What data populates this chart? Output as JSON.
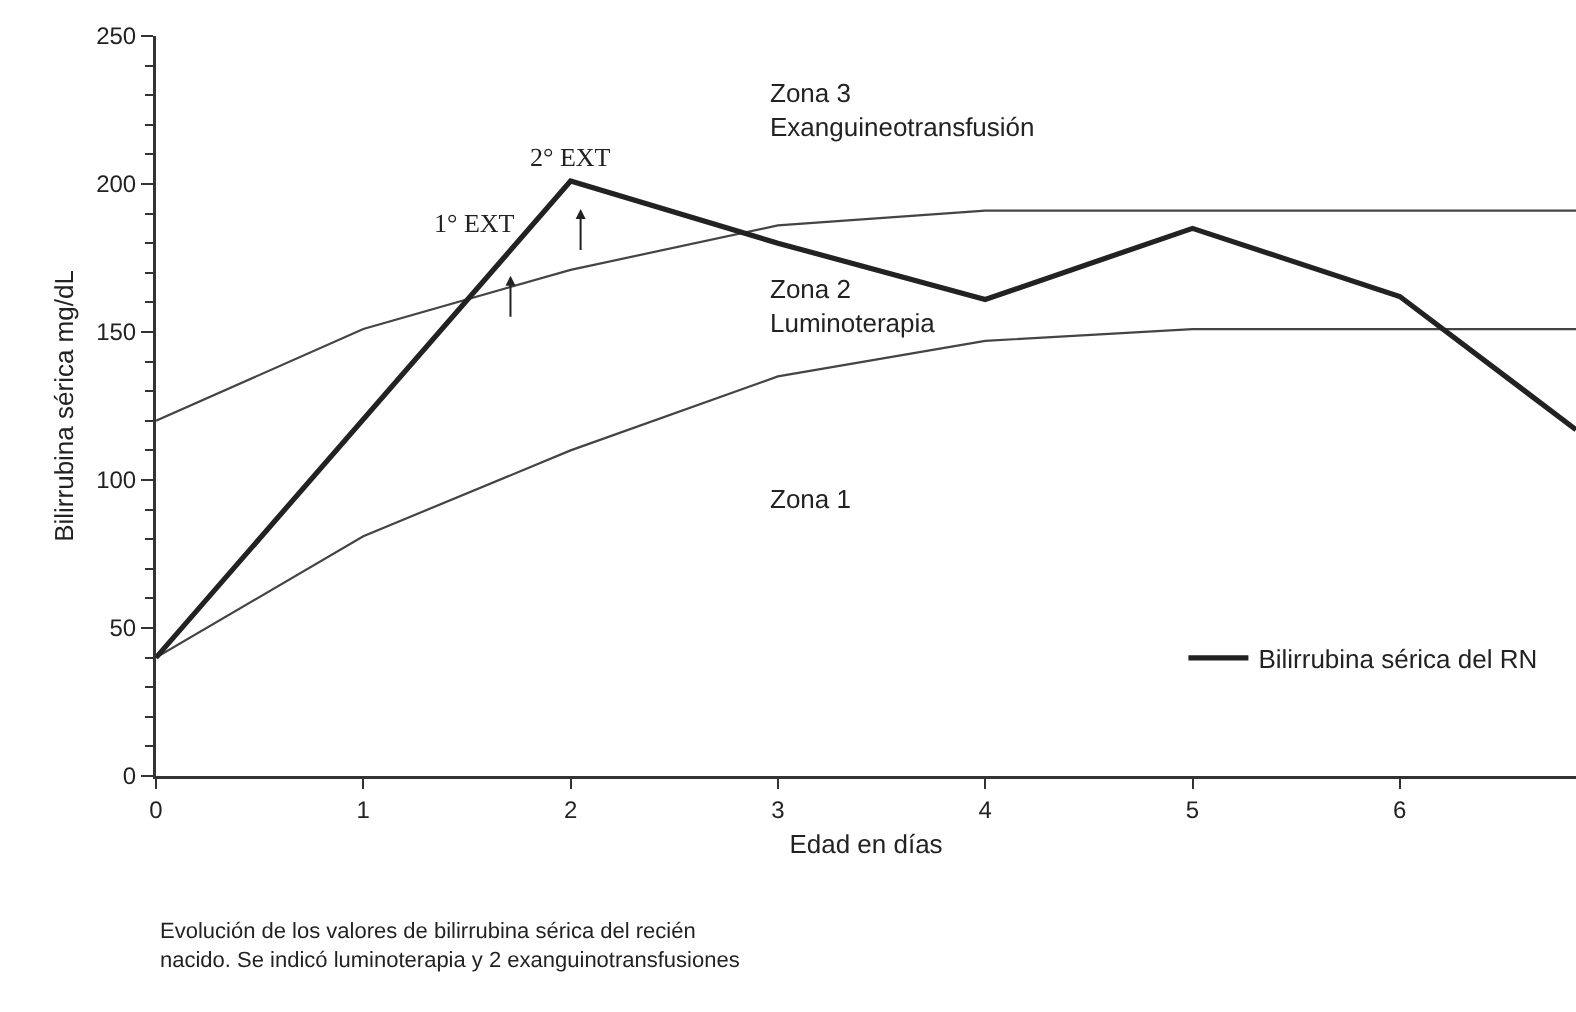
{
  "chart_data": {
    "type": "line",
    "xlabel": "Edad en días",
    "ylabel": "Bilirrubina sérica mg/dL",
    "xlim": [
      0,
      6.85
    ],
    "xticks": [
      0,
      1,
      2,
      3,
      4,
      5,
      6
    ],
    "ylim": [
      0,
      250
    ],
    "yticks": [
      0,
      50,
      100,
      150,
      200,
      250
    ],
    "grid": false,
    "legend": "bottom right",
    "marker": "none",
    "line_style": "solid",
    "series": [
      {
        "color": "#444444",
        "x": [
          0,
          1,
          2,
          3,
          4,
          5,
          6,
          6.85
        ],
        "values": [
          120,
          151,
          171,
          186,
          191,
          191,
          191,
          191
        ]
      },
      {
        "color": "#444444",
        "x": [
          0,
          1,
          2,
          3,
          4,
          5,
          6,
          6.85
        ],
        "values": [
          40,
          81,
          110,
          135,
          147,
          151,
          151,
          151
        ]
      },
      {
        "name": "Bilirrubina sérica del RN",
        "color": "#222222",
        "x": [
          0,
          2,
          3,
          4,
          5,
          6,
          6.85
        ],
        "values": [
          40,
          201,
          180,
          161,
          185,
          162,
          117
        ]
      }
    ],
    "annotations": [
      "Zona 3\nExanguineotransfusión",
      "Zona 2\nLuminoterapia",
      "Zona 1",
      {
        "text": "1° EXT",
        "x": 1.71,
        "y": 169
      },
      {
        "text": "2° EXT",
        "x": 2,
        "y": 201
      },
      "Evolución de los valores de bilirrubina sérica del recién\nnacido. Se indicó luminoterapia y 2 exanguinotransfusiones"
    ]
  }
}
